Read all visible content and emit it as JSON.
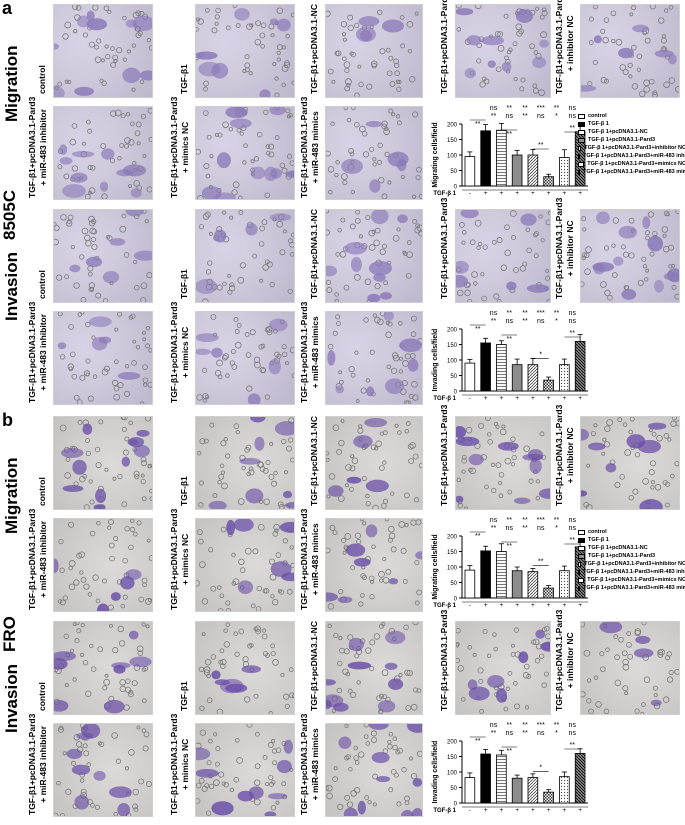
{
  "panels": [
    {
      "letter": "a",
      "cell_line": "8505C",
      "blocks": [
        {
          "assay": "Migration",
          "row1_labels": [
            "control",
            "TGF-β1",
            "TGF-β1+pcDNA3.1-NC",
            "TGF-β1+pcDNA3.1-Pard3",
            "TGF-β1+pcDNA3.1-Pard3\n+ inhibitor NC"
          ],
          "row2_labels": [
            "TGF-β1+pcDNA3.1-Pard3\n+ miR-483 inhibitor",
            "TGF-β1+pcDNA3.1-Pard3\n+ mimics NC",
            "TGF-β1+pcDNA3.1-Pard3\n+ miR-483 mimics"
          ],
          "ylabel": "Migrating cells/field",
          "max": 200
        },
        {
          "assay": "Invasion",
          "row1_labels": [
            "control",
            "TGF-β1",
            "TGF-β1+pcDNA3.1-NC",
            "TGF-β1+pcDNA3.1-Pard3",
            "TGF-β1+pcDNA3.1-Pard3\n+ inhibitor NC"
          ],
          "row2_labels": [
            "TGF-β1+pcDNA3.1-Pard3\n+ miR-483 inhibitor",
            "TGF-β1+pcDNA3.1-Pard3\n+ mimics NC",
            "TGF-β1+pcDNA3.1-Pard3\n+ miR-483 mimics"
          ],
          "ylabel": "Invading cells/field",
          "max": 200
        }
      ]
    },
    {
      "letter": "b",
      "cell_line": "FRO",
      "blocks": [
        {
          "assay": "Migration",
          "row1_labels": [
            "control",
            "TGF-β1",
            "TGF-β1+pcDNA3.1-NC",
            "TGF-β1+pcDNA3.1-Pard3",
            "TGF-β1+pcDNA3.1-Pard3\n+ inhibitor NC"
          ],
          "row2_labels": [
            "TGF-β1+pcDNA3.1-Pard3\n+ miR-483 inhibitor",
            "TGF-β1+pcDNA3.1-Pard3\n+ mimics NC",
            "TGF-β1+pcDNA3.1-Pard3\n+ miR-483 mimics"
          ],
          "ylabel": "Migrating cells/field",
          "max": 200
        },
        {
          "assay": "Invasion",
          "row1_labels": [
            "control",
            "TGF-β1",
            "TGF-β1+pcDNA3.1-NC",
            "TGF-β1+pcDNA3.1-Pard3",
            "TGF-β1+pcDNA3.1-Pard3\n+ inhibitor NC"
          ],
          "row2_labels": [
            "TGF-β1+pcDNA3.1-Pard3\n+ miR-483 inhibitor",
            "TGF-β1+pcDNA3.1-Pard3\n+ mimics NC",
            "TGF-β1+pcDNA3.1-Pard3\n+ miR-483 mimics"
          ],
          "ylabel": "Invading cells/field",
          "max": 200
        }
      ]
    }
  ],
  "legend": [
    "control",
    "TGF-β 1",
    "TGF-β 1+pcDNA3.1-NC",
    "TGF-β 1+pcDNA3.1-Pard3",
    "TGF-β 1+pcDNA3.1-Pard3+inhibitor NC",
    "TGF-β 1+pcDNA3.1-Pard3+miR-483 inhibitor",
    "TGF-β 1+pcDNA3.1-Pard3+mimics NC",
    "TGF-β 1+pcDNA3.1-Pard3+miR-483 mimics"
  ],
  "tgf_row_label": "TGF-β 1",
  "tgf_row_signs": [
    "-",
    "+",
    "+",
    "+",
    "+",
    "+",
    "+",
    "+"
  ],
  "sig_row1": [
    "ns",
    "**",
    "**",
    "***",
    "**",
    "ns"
  ],
  "sig_row2": [
    "**",
    "ns",
    "**",
    "ns",
    "*",
    "ns"
  ],
  "colors": {
    "cell_8505": "#8a78b8",
    "cell_fro": "#6a4ea8"
  },
  "chart_data": [
    {
      "type": "bar",
      "title": "",
      "ylabel": "Migrating cells/field",
      "ylim": [
        0,
        200
      ],
      "y_ticks": [
        0,
        50,
        100,
        150,
        200
      ],
      "categories": [
        "control",
        "TGF-β 1",
        "TGF-β 1+pcDNA3.1-NC",
        "TGF-β 1+pcDNA3.1-Pard3",
        "TGF-β 1+pcDNA3.1-Pard3+inhibitor NC",
        "TGF-β 1+pcDNA3.1-Pard3+miR-483 inhibitor",
        "TGF-β 1+pcDNA3.1-Pard3+mimics NC",
        "TGF-β 1+pcDNA3.1-Pard3+miR-483 mimics"
      ],
      "values": [
        95,
        178,
        180,
        100,
        100,
        30,
        92,
        175
      ],
      "errors": [
        15,
        20,
        22,
        15,
        18,
        8,
        25,
        25
      ]
    },
    {
      "type": "bar",
      "title": "",
      "ylabel": "Invading cells/field",
      "ylim": [
        0,
        200
      ],
      "y_ticks": [
        0,
        50,
        100,
        150,
        200
      ],
      "categories": [
        "control",
        "TGF-β 1",
        "TGF-β 1+pcDNA3.1-NC",
        "TGF-β 1+pcDNA3.1-Pard3",
        "TGF-β 1+pcDNA3.1-Pard3+inhibitor NC",
        "TGF-β 1+pcDNA3.1-Pard3+miR-483 inhibitor",
        "TGF-β 1+pcDNA3.1-Pard3+mimics NC",
        "TGF-β 1+pcDNA3.1-Pard3+miR-483 mimics"
      ],
      "values": [
        90,
        155,
        150,
        85,
        85,
        35,
        85,
        160
      ],
      "errors": [
        12,
        15,
        12,
        18,
        20,
        10,
        18,
        22
      ]
    },
    {
      "type": "bar",
      "title": "",
      "ylabel": "Migrating cells/field",
      "ylim": [
        0,
        200
      ],
      "y_ticks": [
        0,
        50,
        100,
        150,
        200
      ],
      "categories": [
        "control",
        "TGF-β 1",
        "TGF-β 1+pcDNA3.1-NC",
        "TGF-β 1+pcDNA3.1-Pard3",
        "TGF-β 1+pcDNA3.1-Pard3+inhibitor NC",
        "TGF-β 1+pcDNA3.1-Pard3+miR-483 inhibitor",
        "TGF-β 1+pcDNA3.1-Pard3+mimics NC",
        "TGF-β 1+pcDNA3.1-Pard3+miR-483 mimics"
      ],
      "values": [
        90,
        152,
        150,
        88,
        85,
        32,
        88,
        165
      ],
      "errors": [
        15,
        15,
        25,
        12,
        10,
        8,
        15,
        15
      ]
    },
    {
      "type": "bar",
      "title": "",
      "ylabel": "Invading cells/field",
      "ylim": [
        0,
        200
      ],
      "y_ticks": [
        0,
        50,
        100,
        150,
        200
      ],
      "categories": [
        "control",
        "TGF-β 1",
        "TGF-β 1+pcDNA3.1-NC",
        "TGF-β 1+pcDNA3.1-Pard3",
        "TGF-β 1+pcDNA3.1-Pard3+inhibitor NC",
        "TGF-β 1+pcDNA3.1-Pard3+miR-483 inhibitor",
        "TGF-β 1+pcDNA3.1-Pard3+mimics NC",
        "TGF-β 1+pcDNA3.1-Pard3+miR-483 mimics"
      ],
      "values": [
        82,
        158,
        155,
        80,
        82,
        35,
        85,
        160
      ],
      "errors": [
        15,
        15,
        15,
        10,
        12,
        8,
        15,
        15
      ]
    }
  ]
}
